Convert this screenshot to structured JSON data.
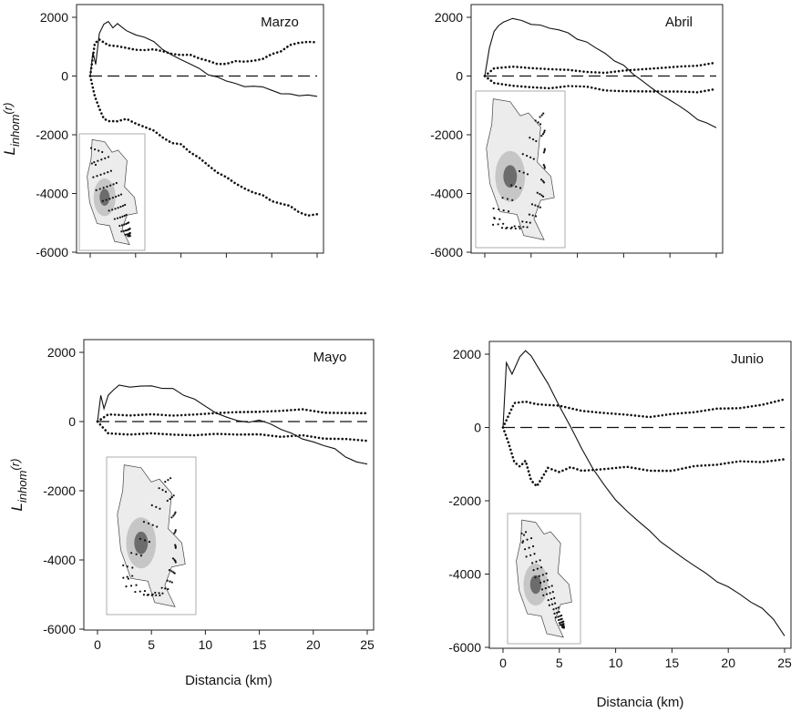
{
  "chart_data": [
    {
      "type": "line",
      "title": "Marzo",
      "ylabel_main": "L",
      "ylabel_sub": "inhom",
      "ylabel_arg": "(r)",
      "xlabel": "",
      "ylim": [
        -6000,
        2000
      ],
      "yticks": [
        "2000",
        "0",
        "-2000",
        "-4000",
        "-6000"
      ],
      "xticks": [],
      "xlim": [
        0,
        25
      ],
      "reference_line": 0,
      "series": [
        {
          "style": "solid",
          "x": [
            0,
            0.3,
            0.6,
            1,
            1.5,
            2,
            2.5,
            3,
            3.5,
            4,
            5,
            6,
            7,
            8,
            9,
            10,
            11,
            12,
            13,
            14,
            15,
            16,
            17,
            18,
            19,
            20,
            21,
            22,
            23,
            24,
            25
          ],
          "y": [
            0,
            900,
            400,
            1500,
            1800,
            1900,
            1700,
            1800,
            1600,
            1500,
            1400,
            1300,
            1100,
            900,
            700,
            600,
            500,
            300,
            100,
            0,
            -100,
            -200,
            -300,
            -400,
            -450,
            -550,
            -650,
            -700,
            -750,
            -700,
            -600
          ]
        },
        {
          "style": "dotted",
          "x": [
            0,
            0.5,
            1,
            2,
            3,
            4,
            5,
            6,
            7,
            8,
            9,
            10,
            11,
            12,
            13,
            14,
            15,
            16,
            17,
            18,
            19,
            20,
            21,
            22,
            23,
            24,
            25
          ],
          "y": [
            0,
            1200,
            1250,
            1100,
            1050,
            1000,
            950,
            900,
            850,
            800,
            750,
            700,
            650,
            600,
            500,
            450,
            500,
            550,
            550,
            550,
            650,
            800,
            900,
            1000,
            1050,
            1100,
            1100
          ]
        },
        {
          "style": "dotted",
          "x": [
            0,
            0.5,
            1,
            1.5,
            2,
            3,
            4,
            5,
            6,
            7,
            8,
            9,
            10,
            11,
            12,
            13,
            14,
            15,
            16,
            17,
            18,
            19,
            20,
            21,
            22,
            23,
            24,
            25
          ],
          "y": [
            0,
            -600,
            -1100,
            -1400,
            -1500,
            -1500,
            -1400,
            -1600,
            -1800,
            -1900,
            -2100,
            -2300,
            -2400,
            -2600,
            -2800,
            -3000,
            -3200,
            -3400,
            -3600,
            -3800,
            -3900,
            -4000,
            -4200,
            -4400,
            -4500,
            -4700,
            -4800,
            -4800
          ]
        }
      ]
    },
    {
      "type": "line",
      "title": "Abril",
      "ylabel_main": "",
      "ylabel_sub": "",
      "ylabel_arg": "",
      "xlabel": "",
      "ylim": [
        -6000,
        2000
      ],
      "yticks": [
        "2000",
        "0",
        "-2000",
        "-4000",
        "-6000"
      ],
      "xticks": [],
      "xlim": [
        0,
        25
      ],
      "reference_line": 0,
      "series": [
        {
          "style": "solid",
          "x": [
            0,
            0.5,
            1,
            1.5,
            2,
            3,
            4,
            5,
            6,
            7,
            8,
            9,
            10,
            11,
            12,
            13,
            14,
            15,
            16,
            17,
            18,
            19,
            20,
            21,
            22,
            23,
            24,
            25
          ],
          "y": [
            0,
            900,
            1500,
            1700,
            1800,
            1900,
            1900,
            1850,
            1800,
            1700,
            1600,
            1500,
            1300,
            1100,
            900,
            700,
            500,
            300,
            0,
            -200,
            -400,
            -600,
            -800,
            -1000,
            -1200,
            -1400,
            -1550,
            -1700
          ]
        },
        {
          "style": "dotted",
          "x": [
            0,
            1,
            3,
            5,
            7,
            9,
            11,
            13,
            15,
            17,
            19,
            21,
            23,
            25
          ],
          "y": [
            0,
            200,
            300,
            250,
            200,
            150,
            150,
            200,
            250,
            300,
            300,
            350,
            400,
            400
          ]
        },
        {
          "style": "dotted",
          "x": [
            0,
            1,
            3,
            5,
            7,
            9,
            11,
            13,
            15,
            17,
            19,
            21,
            23,
            25
          ],
          "y": [
            0,
            -300,
            -350,
            -400,
            -450,
            -400,
            -350,
            -400,
            -450,
            -450,
            -500,
            -500,
            -500,
            -500
          ]
        }
      ]
    },
    {
      "type": "line",
      "title": "Mayo",
      "ylabel_main": "L",
      "ylabel_sub": "inhom",
      "ylabel_arg": "(r)",
      "xlabel": "Distancia (km)",
      "ylim": [
        -6000,
        2000
      ],
      "yticks": [
        "2000",
        "0",
        "-2000",
        "-4000",
        "-6000"
      ],
      "xticks": [
        "0",
        "5",
        "10",
        "15",
        "20",
        "25"
      ],
      "xlim": [
        0,
        25
      ],
      "reference_line": 0,
      "series": [
        {
          "style": "solid",
          "x": [
            0,
            0.3,
            0.6,
            1,
            1.5,
            2,
            3,
            4,
            5,
            6,
            7,
            8,
            9,
            10,
            11,
            12,
            13,
            14,
            15,
            16,
            17,
            18,
            19,
            20,
            21,
            22,
            23,
            24,
            25
          ],
          "y": [
            0,
            800,
            400,
            700,
            900,
            1000,
            950,
            1000,
            1000,
            950,
            900,
            800,
            700,
            500,
            300,
            200,
            100,
            50,
            0,
            -100,
            -250,
            -400,
            -550,
            -650,
            -750,
            -850,
            -950,
            -1100,
            -1200
          ]
        },
        {
          "style": "dotted",
          "x": [
            0,
            1,
            3,
            5,
            7,
            9,
            11,
            13,
            15,
            17,
            19,
            21,
            23,
            25
          ],
          "y": [
            0,
            250,
            200,
            150,
            150,
            150,
            200,
            250,
            250,
            300,
            300,
            300,
            300,
            300
          ]
        },
        {
          "style": "dotted",
          "x": [
            0,
            1,
            3,
            5,
            7,
            9,
            11,
            13,
            15,
            17,
            19,
            21,
            23,
            25
          ],
          "y": [
            0,
            -300,
            -350,
            -400,
            -400,
            -450,
            -400,
            -400,
            -400,
            -450,
            -450,
            -450,
            -450,
            -500
          ]
        }
      ]
    },
    {
      "type": "line",
      "title": "Junio",
      "ylabel_main": "",
      "ylabel_sub": "",
      "ylabel_arg": "",
      "xlabel": "Distancia (km)",
      "ylim": [
        -6000,
        2000
      ],
      "yticks": [
        "2000",
        "0",
        "-2000",
        "-4000",
        "-6000"
      ],
      "xticks": [
        "0",
        "5",
        "10",
        "15",
        "20",
        "25"
      ],
      "xlim": [
        0,
        25
      ],
      "reference_line": 0,
      "series": [
        {
          "style": "solid",
          "x": [
            0,
            0.3,
            0.8,
            1.5,
            2,
            2.5,
            3,
            4,
            5,
            6,
            7,
            8,
            9,
            10,
            11,
            12,
            13,
            14,
            15,
            16,
            17,
            18,
            19,
            20,
            21,
            22,
            23,
            24,
            25
          ],
          "y": [
            0,
            1800,
            1500,
            2000,
            2100,
            2000,
            1700,
            1200,
            600,
            0,
            -600,
            -1200,
            -1600,
            -2000,
            -2300,
            -2600,
            -2800,
            -3100,
            -3300,
            -3500,
            -3700,
            -3900,
            -4200,
            -4400,
            -4600,
            -4800,
            -5000,
            -5300,
            -5700
          ]
        },
        {
          "style": "dotted",
          "x": [
            0,
            1,
            2,
            3,
            5,
            7,
            9,
            11,
            13,
            15,
            17,
            19,
            21,
            23,
            25
          ],
          "y": [
            0,
            700,
            750,
            700,
            600,
            500,
            400,
            350,
            300,
            350,
            400,
            450,
            500,
            600,
            750
          ]
        },
        {
          "style": "dotted",
          "x": [
            0,
            0.5,
            1,
            1.5,
            2,
            2.5,
            3,
            4,
            5,
            6,
            7,
            9,
            11,
            13,
            15,
            17,
            19,
            21,
            23,
            25
          ],
          "y": [
            0,
            -400,
            -900,
            -1000,
            -900,
            -1400,
            -1600,
            -1100,
            -1200,
            -1100,
            -1200,
            -1200,
            -1100,
            -1200,
            -1200,
            -1100,
            -1000,
            -900,
            -900,
            -800
          ]
        }
      ]
    }
  ]
}
